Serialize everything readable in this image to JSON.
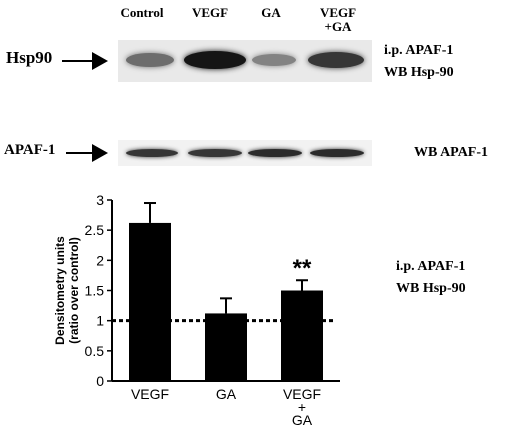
{
  "blot": {
    "lanes": [
      "Control",
      "VEGF",
      "GA",
      "VEGF\n+GA"
    ],
    "hsp90_label": "Hsp90",
    "apaf_label": "APAF-1",
    "hsp90_side": [
      "i.p.  APAF-1",
      "WB Hsp-90"
    ],
    "apaf_side": "WB APAF-1",
    "hsp90_band_intensity": [
      0.55,
      0.95,
      0.45,
      0.8
    ],
    "apaf_band_intensity": [
      0.8,
      0.8,
      0.85,
      0.85
    ]
  },
  "chart_side": [
    "i.p.  APAF-1",
    "WB Hsp-90"
  ],
  "chart_data": {
    "type": "bar",
    "categories": [
      "VEGF",
      "GA",
      "VEGF\n+\nGA"
    ],
    "values": [
      2.62,
      1.12,
      1.5
    ],
    "errors": [
      0.33,
      0.25,
      0.17
    ],
    "significance": [
      "",
      "",
      "**"
    ],
    "ylabel": "Densitometry units\n(ratio over control)",
    "ylim": [
      0,
      3
    ],
    "yticks": [
      "0",
      "0.5",
      "1",
      "1.5",
      "2",
      "2.5",
      "3"
    ],
    "reference_line": 1,
    "bar_color": "#000000"
  }
}
